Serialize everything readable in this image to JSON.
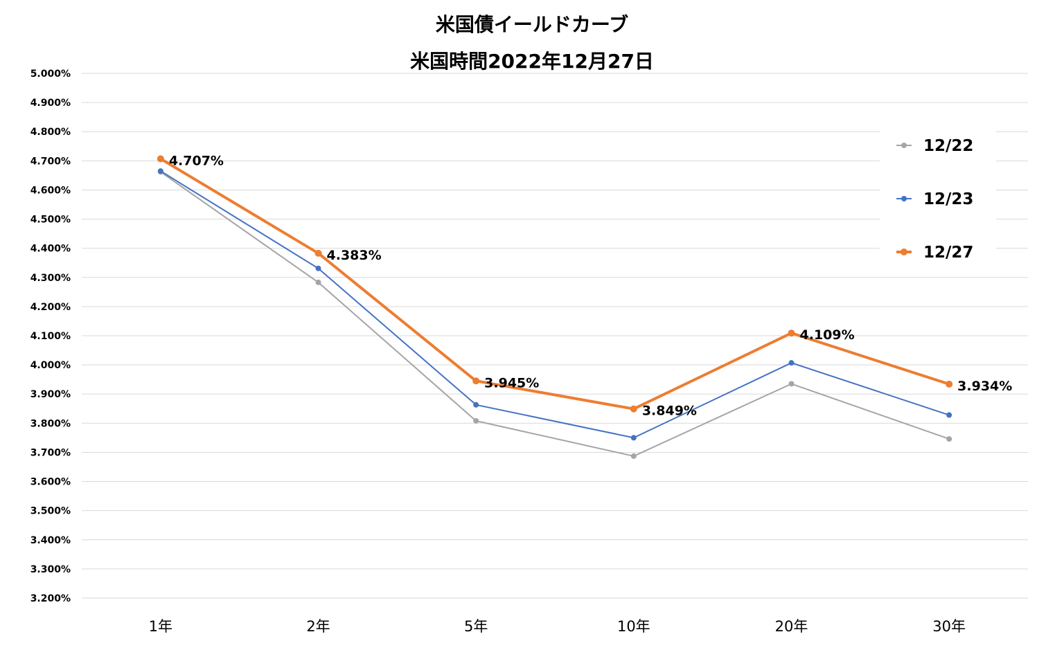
{
  "chart_data": {
    "type": "line",
    "title": "米国債イールドカーブ",
    "subtitle": "米国時間2022年12月27日",
    "xlabel": "",
    "ylabel": "",
    "categories": [
      "1年",
      "2年",
      "5年",
      "10年",
      "20年",
      "30年"
    ],
    "ylim": [
      3.2,
      5.0
    ],
    "ytick_step": 0.1,
    "ytick_labels": [
      "5.000%",
      "4.900%",
      "4.800%",
      "4.700%",
      "4.600%",
      "4.500%",
      "4.400%",
      "4.300%",
      "4.200%",
      "4.100%",
      "4.000%",
      "3.900%",
      "3.800%",
      "3.700%",
      "3.600%",
      "3.500%",
      "3.400%",
      "3.300%",
      "3.200%"
    ],
    "grid": true,
    "legend_position": "right",
    "series": [
      {
        "name": "12/22",
        "color": "#a5a5a5",
        "values": [
          4.662,
          4.283,
          3.808,
          3.687,
          3.935,
          3.746
        ],
        "data_labels": [
          "",
          "",
          "",
          "",
          "",
          ""
        ]
      },
      {
        "name": "12/23",
        "color": "#4472c4",
        "values": [
          4.665,
          4.331,
          3.863,
          3.75,
          4.007,
          3.828
        ],
        "data_labels": [
          "",
          "",
          "",
          "",
          "",
          ""
        ]
      },
      {
        "name": "12/27",
        "color": "#ed7d31",
        "values": [
          4.707,
          4.383,
          3.945,
          3.849,
          4.109,
          3.934
        ],
        "data_labels": [
          "4.707%",
          "4.383%",
          "3.945%",
          "3.849%",
          "4.109%",
          "3.934%"
        ]
      }
    ]
  }
}
